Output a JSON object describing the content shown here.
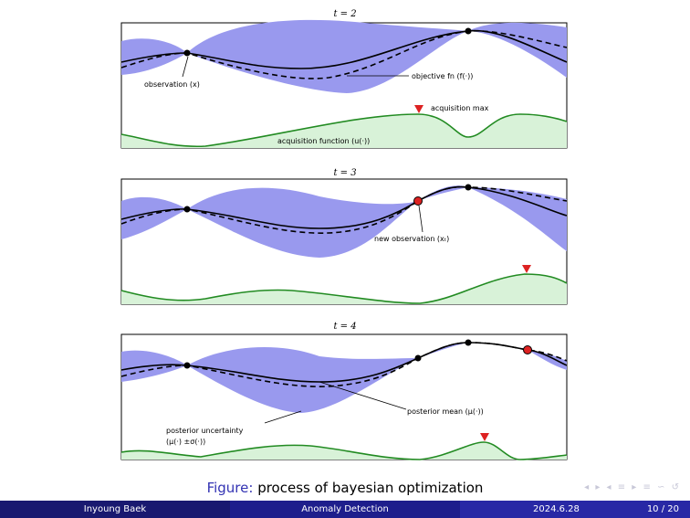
{
  "panels": [
    {
      "title": "t = 2",
      "annotations": {
        "observation": "observation (x)",
        "objective": "objective fn (f(·))",
        "acq_max": "acquisition max",
        "acq_fn": "acquisition function (u(·))"
      }
    },
    {
      "title": "t = 3",
      "annotations": {
        "new_obs": "new observation (xₜ)"
      }
    },
    {
      "title": "t = 4",
      "annotations": {
        "posterior_mean": "posterior mean (μ(·))",
        "uncertainty_1": "posterior uncertainty",
        "uncertainty_2": "(μ(·) ±σ(·))"
      }
    }
  ],
  "colors": {
    "uncertainty_band": "#9999ee",
    "acquisition_line": "#228b22",
    "acquisition_fill": "#d8f2d8",
    "new_point": "#dd2222",
    "max_marker": "#dd2222"
  },
  "caption": {
    "label": "Figure:",
    "text": " process of bayesian optimization"
  },
  "footer": {
    "author": "Inyoung Baek",
    "title": "Anomaly Detection",
    "date": "2024.6.28",
    "page": "10 / 20"
  }
}
